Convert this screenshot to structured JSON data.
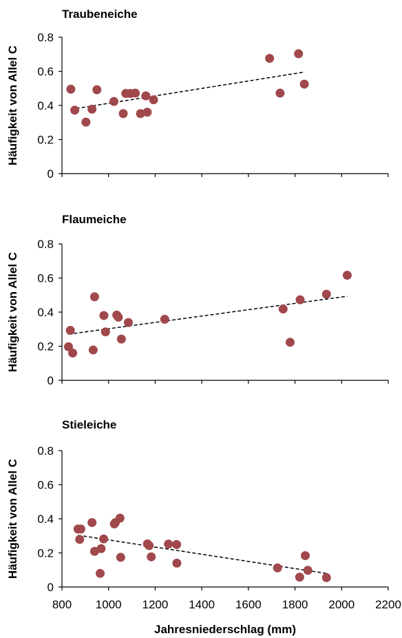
{
  "chart_data": [
    {
      "type": "scatter",
      "title": "Traubeneiche",
      "ylabel": "Häufigkeit von Allel C",
      "xlabel": "",
      "ylim": [
        0,
        0.8
      ],
      "yticks": [
        "0",
        "0.2",
        "0.4",
        "0.6",
        "0.8"
      ],
      "xlim": [
        800,
        2200
      ],
      "show_x_ticklabels": false,
      "trend": true,
      "points": [
        {
          "x": 838,
          "y": 0.495
        },
        {
          "x": 855,
          "y": 0.372
        },
        {
          "x": 903,
          "y": 0.302
        },
        {
          "x": 929,
          "y": 0.378
        },
        {
          "x": 950,
          "y": 0.492
        },
        {
          "x": 1023,
          "y": 0.423
        },
        {
          "x": 1063,
          "y": 0.352
        },
        {
          "x": 1074,
          "y": 0.47
        },
        {
          "x": 1094,
          "y": 0.47
        },
        {
          "x": 1115,
          "y": 0.472
        },
        {
          "x": 1137,
          "y": 0.352
        },
        {
          "x": 1160,
          "y": 0.456
        },
        {
          "x": 1166,
          "y": 0.36
        },
        {
          "x": 1193,
          "y": 0.433
        },
        {
          "x": 1691,
          "y": 0.676
        },
        {
          "x": 1736,
          "y": 0.472
        },
        {
          "x": 1815,
          "y": 0.703
        },
        {
          "x": 1840,
          "y": 0.525
        }
      ]
    },
    {
      "type": "scatter",
      "title": "Flaumeiche",
      "ylabel": "Häufigkeit von Allel C",
      "xlabel": "",
      "ylim": [
        0,
        0.8
      ],
      "yticks": [
        "0",
        "0.2",
        "0.4",
        "0.6",
        "0.8"
      ],
      "xlim": [
        800,
        2200
      ],
      "show_x_ticklabels": false,
      "trend": true,
      "points": [
        {
          "x": 828,
          "y": 0.197
        },
        {
          "x": 836,
          "y": 0.293
        },
        {
          "x": 846,
          "y": 0.16
        },
        {
          "x": 934,
          "y": 0.178
        },
        {
          "x": 940,
          "y": 0.49
        },
        {
          "x": 980,
          "y": 0.38
        },
        {
          "x": 987,
          "y": 0.284
        },
        {
          "x": 1035,
          "y": 0.383
        },
        {
          "x": 1042,
          "y": 0.37
        },
        {
          "x": 1055,
          "y": 0.242
        },
        {
          "x": 1085,
          "y": 0.339
        },
        {
          "x": 1241,
          "y": 0.358
        },
        {
          "x": 1749,
          "y": 0.418
        },
        {
          "x": 1779,
          "y": 0.223
        },
        {
          "x": 1822,
          "y": 0.472
        },
        {
          "x": 1935,
          "y": 0.505
        },
        {
          "x": 2024,
          "y": 0.616
        }
      ]
    },
    {
      "type": "scatter",
      "title": "Stieleiche",
      "ylabel": "Häufigkeit von Allel C",
      "xlabel": "Jahresniederschlag (mm)",
      "ylim": [
        0,
        0.8
      ],
      "yticks": [
        "0",
        "0.2",
        "0.4",
        "0.6",
        "0.8"
      ],
      "xlim": [
        800,
        2200
      ],
      "xticks": [
        "800",
        "1000",
        "1200",
        "1400",
        "1600",
        "1800",
        "2000",
        "2200"
      ],
      "show_x_ticklabels": true,
      "trend": true,
      "points": [
        {
          "x": 869,
          "y": 0.34
        },
        {
          "x": 876,
          "y": 0.279
        },
        {
          "x": 881,
          "y": 0.34
        },
        {
          "x": 929,
          "y": 0.378
        },
        {
          "x": 940,
          "y": 0.209
        },
        {
          "x": 964,
          "y": 0.08
        },
        {
          "x": 968,
          "y": 0.225
        },
        {
          "x": 979,
          "y": 0.282
        },
        {
          "x": 1025,
          "y": 0.37
        },
        {
          "x": 1029,
          "y": 0.378
        },
        {
          "x": 1049,
          "y": 0.404
        },
        {
          "x": 1052,
          "y": 0.174
        },
        {
          "x": 1167,
          "y": 0.253
        },
        {
          "x": 1174,
          "y": 0.243
        },
        {
          "x": 1183,
          "y": 0.177
        },
        {
          "x": 1257,
          "y": 0.252
        },
        {
          "x": 1292,
          "y": 0.249
        },
        {
          "x": 1293,
          "y": 0.14
        },
        {
          "x": 1725,
          "y": 0.112
        },
        {
          "x": 1820,
          "y": 0.058
        },
        {
          "x": 1844,
          "y": 0.184
        },
        {
          "x": 1855,
          "y": 0.098
        },
        {
          "x": 1935,
          "y": 0.055
        }
      ]
    }
  ]
}
